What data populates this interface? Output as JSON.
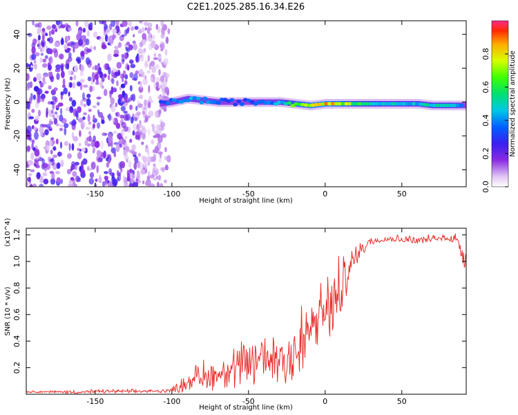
{
  "title": "C2E1.2025.285.16.34.E26",
  "colors": {
    "background": "#ffffff",
    "snr_line": "#e8302c",
    "frame": "#000000"
  },
  "chart_data": [
    {
      "type": "heatmap",
      "name": "spectrogram",
      "title": "C2E1.2025.285.16.34.E26",
      "xlabel": "Height of straight line (km)",
      "ylabel": "Frequency (Hz)",
      "xlim": [
        -195,
        92
      ],
      "ylim": [
        -50,
        48
      ],
      "x_ticks": [
        -150,
        -100,
        -50,
        0,
        50
      ],
      "x_tick_labels": [
        "-150",
        "-100",
        "-50",
        "0",
        "50"
      ],
      "y_ticks": [
        -40,
        -20,
        0,
        20,
        40
      ],
      "y_tick_labels": [
        "-40",
        "-20",
        "0",
        "20",
        "40"
      ],
      "noise_region": {
        "x_from": -195,
        "x_to": -108,
        "freq_from": -50,
        "freq_to": 48
      },
      "signal_track": {
        "x": [
          -108,
          -100,
          -90,
          -80,
          -70,
          -60,
          -50,
          -40,
          -30,
          -20,
          -10,
          0,
          10,
          20,
          30,
          40,
          50,
          60,
          70,
          80,
          92
        ],
        "freq": [
          -1,
          0,
          2,
          1,
          0,
          0,
          0,
          0,
          0,
          -1,
          -2,
          -1,
          -1,
          -1,
          -1,
          -1,
          -1,
          -1,
          -2,
          -2,
          -2
        ],
        "amplitude": [
          0.35,
          0.4,
          0.45,
          0.45,
          0.4,
          0.35,
          0.35,
          0.4,
          0.45,
          0.7,
          0.85,
          0.9,
          0.8,
          0.65,
          0.55,
          0.5,
          0.5,
          0.5,
          0.55,
          0.6,
          0.35
        ]
      },
      "colorbar": {
        "label": "Normalized spectral amplitude",
        "range": [
          0.0,
          1.0
        ],
        "ticks": [
          0.0,
          0.2,
          0.4,
          0.6,
          0.8
        ],
        "tick_labels": [
          "0.0",
          "0.2",
          "0.4",
          "0.6",
          "0.8"
        ]
      }
    },
    {
      "type": "line",
      "name": "snr",
      "xlabel": "Height of straight line (km)",
      "ylabel": "SNR (10 * v/v)",
      "y_scale_label": "(x10^4)",
      "xlim": [
        -195,
        92
      ],
      "ylim": [
        0.0,
        1.25
      ],
      "x_ticks": [
        -150,
        -100,
        -50,
        0,
        50
      ],
      "x_tick_labels": [
        "-150",
        "-100",
        "-50",
        "0",
        "50"
      ],
      "y_ticks": [
        0.2,
        0.4,
        0.6,
        0.8,
        1.0,
        1.2
      ],
      "y_tick_labels": [
        "0.2",
        "0.4",
        "0.6",
        "0.8",
        "1.0",
        "1.2"
      ],
      "series": [
        {
          "name": "SNR",
          "x": [
            -195,
            -180,
            -160,
            -140,
            -120,
            -110,
            -100,
            -95,
            -90,
            -85,
            -80,
            -75,
            -70,
            -65,
            -60,
            -55,
            -50,
            -45,
            -40,
            -35,
            -30,
            -25,
            -20,
            -15,
            -12,
            -10,
            -8,
            -5,
            -2,
            0,
            3,
            5,
            8,
            10,
            12,
            15,
            18,
            20,
            22,
            25,
            28,
            30,
            35,
            40,
            50,
            60,
            70,
            80,
            85,
            88,
            90,
            92
          ],
          "y": [
            0.02,
            0.02,
            0.02,
            0.02,
            0.02,
            0.02,
            0.03,
            0.05,
            0.08,
            0.1,
            0.12,
            0.12,
            0.15,
            0.15,
            0.18,
            0.2,
            0.22,
            0.25,
            0.28,
            0.3,
            0.32,
            0.35,
            0.35,
            0.3,
            0.38,
            0.45,
            0.5,
            0.55,
            0.58,
            0.6,
            0.62,
            0.7,
            0.8,
            0.85,
            0.9,
            0.95,
            1.0,
            1.05,
            1.08,
            1.1,
            1.13,
            1.15,
            1.17,
            1.18,
            1.18,
            1.17,
            1.18,
            1.2,
            1.18,
            1.15,
            1.1,
            1.05
          ],
          "band_top": [
            0.03,
            0.03,
            0.04,
            0.04,
            0.04,
            0.04,
            0.06,
            0.12,
            0.2,
            0.25,
            0.3,
            0.3,
            0.35,
            0.35,
            0.4,
            0.45,
            0.5,
            0.55,
            0.6,
            0.6,
            0.62,
            0.65,
            0.75,
            0.8,
            0.85,
            0.9,
            0.82,
            0.85,
            0.9,
            0.95,
            1.02,
            1.1,
            1.15,
            1.17,
            1.12,
            1.1,
            1.15,
            1.15,
            1.18,
            1.2,
            1.2,
            1.2,
            1.2,
            1.2,
            1.21,
            1.2,
            1.21,
            1.22,
            1.24,
            1.24,
            1.2,
            1.15
          ],
          "band_bottom": [
            0.01,
            0.01,
            0.0,
            0.01,
            0.01,
            0.01,
            0.01,
            0.01,
            0.01,
            0.02,
            0.02,
            0.02,
            0.03,
            0.03,
            0.03,
            0.03,
            0.03,
            0.04,
            0.05,
            0.05,
            0.05,
            0.05,
            0.02,
            0.01,
            0.15,
            0.25,
            0.3,
            0.35,
            0.4,
            0.4,
            0.35,
            0.4,
            0.35,
            0.3,
            0.6,
            0.8,
            0.9,
            0.95,
            1.0,
            1.05,
            1.1,
            1.12,
            1.14,
            1.15,
            1.14,
            1.13,
            1.14,
            1.15,
            1.12,
            1.05,
            0.95,
            0.9
          ]
        }
      ]
    }
  ]
}
